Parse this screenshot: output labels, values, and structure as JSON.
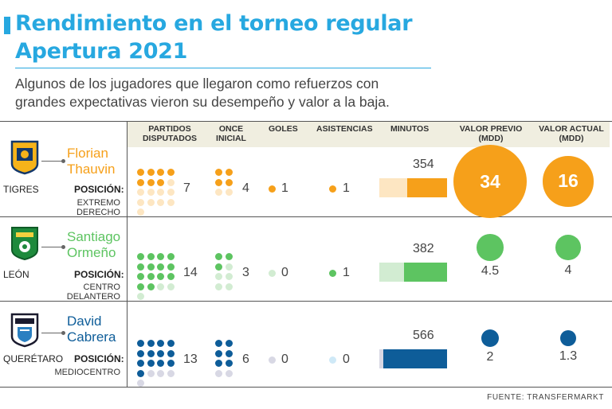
{
  "header": {
    "title_line1": "Rendimiento en el torneo regular",
    "title_line2": "Apertura 2021",
    "subtitle_line1": "Algunos de los jugadores que llegaron como refuerzos con",
    "subtitle_line2": "grandes expectativas vieron su desempeño y valor a la baja."
  },
  "columns": {
    "partidos_1": "PARTIDOS",
    "partidos_2": "DISPUTADOS",
    "once_1": "ONCE",
    "once_2": "INICIAL",
    "goles": "GOLES",
    "asistencias": "ASISTENCIAS",
    "minutos": "MINUTOS",
    "valor_previo_1": "VALOR PREVIO",
    "valor_previo_2": "(MDD)",
    "valor_actual_1": "VALOR ACTUAL",
    "valor_actual_2": "(MDD)"
  },
  "position_label": "POSICIÓN:",
  "source": "FUENTE: TRANSFERMARKT",
  "players": [
    {
      "first": "Florian",
      "last": "Thauvin",
      "team": "TIGRES",
      "position": "EXTREMO DERECHO",
      "color": "#f6a01a",
      "light": "#fde6c2"
    },
    {
      "first": "Santiago",
      "last": "Ormeño",
      "team": "LEÓN",
      "position": "CENTRO DELANTERO",
      "color": "#5dc461",
      "light": "#d2ecd2"
    },
    {
      "first": "David",
      "last": "Cabrera",
      "team": "QUERÉTARO",
      "position": "MEDIOCENTRO",
      "color": "#0e5d99",
      "light": "#d8d8e4"
    }
  ],
  "chart_data": {
    "type": "table",
    "title": "Rendimiento en el torneo regular Apertura 2021",
    "columns": [
      "Partidos disputados",
      "Once inicial",
      "Goles",
      "Asistencias",
      "Minutos",
      "Valor previo (MDD)",
      "Valor actual (MDD)"
    ],
    "rows": [
      {
        "player": "Florian Thauvin",
        "partidos": 7,
        "once": 4,
        "goles": 1,
        "asistencias": 1,
        "minutos": 354,
        "valor_previo": 34,
        "valor_actual": 16
      },
      {
        "player": "Santiago Ormeño",
        "partidos": 14,
        "once": 3,
        "goles": 0,
        "asistencias": 1,
        "minutos": 382,
        "valor_previo": 4.5,
        "valor_actual": 4
      },
      {
        "player": "David Cabrera",
        "partidos": 13,
        "once": 6,
        "goles": 0,
        "asistencias": 0,
        "minutos": 566,
        "valor_previo": 2,
        "valor_actual": 1.3
      }
    ],
    "max_partidos": 17,
    "max_minutos": 600
  }
}
